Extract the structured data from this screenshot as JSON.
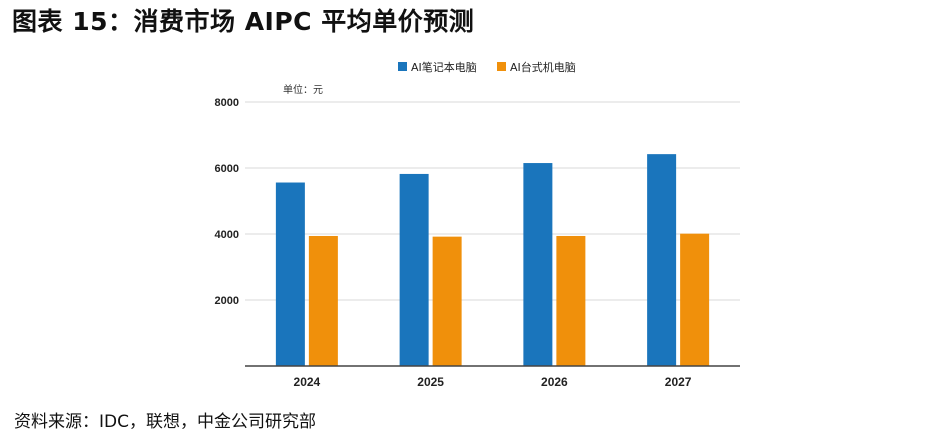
{
  "figure": {
    "title": "图表 15：消费市场 AIPC 平均单价预测",
    "source": "资料来源：IDC，联想，中金公司研究部"
  },
  "chart_data": {
    "type": "bar",
    "categories": [
      "2024",
      "2025",
      "2026",
      "2027"
    ],
    "series": [
      {
        "name": "AI笔记本电脑",
        "color": "#1a75bc",
        "values": [
          5560,
          5820,
          6150,
          6420
        ]
      },
      {
        "name": "AI台式机电脑",
        "color": "#f0900b",
        "values": [
          3940,
          3920,
          3940,
          4010
        ]
      }
    ],
    "ylim": [
      0,
      8000
    ],
    "yticks": [
      "2000",
      "4000",
      "6000",
      "8000"
    ],
    "unit_label": "单位：元",
    "grid": true,
    "legend_position": "top-center"
  }
}
